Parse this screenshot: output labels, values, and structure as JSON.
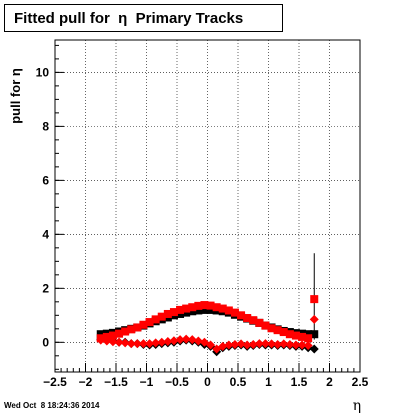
{
  "chart_data": {
    "type": "scatter",
    "title": "Fitted pull for  η  Primary Tracks",
    "xlabel": "η",
    "ylabel": "pull for η",
    "xlim": [
      -2.5,
      2.5
    ],
    "ylim": [
      -1.1,
      11.2
    ],
    "xticks": [
      "−2.5",
      "−2",
      "−1.5",
      "−1",
      "−0.5",
      "0",
      "0.5",
      "1",
      "1.5",
      "2",
      "2.5"
    ],
    "yticks": [
      "0",
      "2",
      "4",
      "6",
      "8",
      "10"
    ],
    "grid": true,
    "series": [
      {
        "marker": "square",
        "color": "#000000",
        "x": [
          -1.75,
          -1.65,
          -1.55,
          -1.45,
          -1.35,
          -1.25,
          -1.15,
          -1.05,
          -0.95,
          -0.85,
          -0.75,
          -0.65,
          -0.55,
          -0.45,
          -0.35,
          -0.25,
          -0.15,
          -0.05,
          0.05,
          0.15,
          0.25,
          0.35,
          0.45,
          0.55,
          0.65,
          0.75,
          0.85,
          0.95,
          1.05,
          1.15,
          1.25,
          1.35,
          1.45,
          1.55,
          1.65,
          1.75
        ],
        "y": [
          0.3,
          0.32,
          0.35,
          0.4,
          0.45,
          0.5,
          0.55,
          0.62,
          0.7,
          0.78,
          0.85,
          0.92,
          1.0,
          1.05,
          1.1,
          1.15,
          1.18,
          1.2,
          1.2,
          1.18,
          1.15,
          1.1,
          1.02,
          0.95,
          0.88,
          0.8,
          0.72,
          0.62,
          0.55,
          0.48,
          0.42,
          0.38,
          0.34,
          0.32,
          0.3,
          0.3
        ]
      },
      {
        "marker": "diamond",
        "color": "#000000",
        "x": [
          -1.75,
          -1.65,
          -1.55,
          -1.45,
          -1.35,
          -1.25,
          -1.15,
          -1.05,
          -0.95,
          -0.85,
          -0.75,
          -0.65,
          -0.55,
          -0.45,
          -0.35,
          -0.25,
          -0.15,
          -0.05,
          0.05,
          0.15,
          0.25,
          0.35,
          0.45,
          0.55,
          0.65,
          0.75,
          0.85,
          0.95,
          1.05,
          1.15,
          1.25,
          1.35,
          1.45,
          1.55,
          1.65,
          1.75
        ],
        "y": [
          0.12,
          0.08,
          0.05,
          0.0,
          0.0,
          -0.05,
          -0.05,
          -0.08,
          -0.1,
          -0.08,
          -0.05,
          -0.02,
          0.0,
          0.05,
          0.08,
          0.05,
          0.0,
          -0.08,
          -0.15,
          -0.35,
          -0.2,
          -0.15,
          -0.12,
          -0.1,
          -0.15,
          -0.12,
          -0.08,
          -0.1,
          -0.1,
          -0.12,
          -0.1,
          -0.12,
          -0.15,
          -0.15,
          -0.2,
          -0.25
        ]
      },
      {
        "marker": "square",
        "color": "#ff0000",
        "x": [
          -1.75,
          -1.65,
          -1.55,
          -1.45,
          -1.35,
          -1.25,
          -1.15,
          -1.05,
          -0.95,
          -0.85,
          -0.75,
          -0.65,
          -0.55,
          -0.45,
          -0.35,
          -0.25,
          -0.15,
          -0.05,
          0.05,
          0.15,
          0.25,
          0.35,
          0.45,
          0.55,
          0.65,
          0.75,
          0.85,
          0.95,
          1.05,
          1.15,
          1.25,
          1.35,
          1.45,
          1.55,
          1.65,
          1.75
        ],
        "y": [
          0.15,
          0.2,
          0.25,
          0.32,
          0.4,
          0.48,
          0.55,
          0.65,
          0.75,
          0.85,
          0.95,
          1.05,
          1.12,
          1.2,
          1.25,
          1.3,
          1.35,
          1.38,
          1.36,
          1.3,
          1.25,
          1.18,
          1.1,
          1.0,
          0.9,
          0.82,
          0.72,
          0.62,
          0.52,
          0.45,
          0.38,
          0.3,
          0.25,
          0.2,
          0.15,
          1.6
        ]
      },
      {
        "marker": "diamond",
        "color": "#ff0000",
        "x": [
          -1.75,
          -1.65,
          -1.55,
          -1.45,
          -1.35,
          -1.25,
          -1.15,
          -1.05,
          -0.95,
          -0.85,
          -0.75,
          -0.65,
          -0.55,
          -0.45,
          -0.35,
          -0.25,
          -0.15,
          -0.05,
          0.05,
          0.15,
          0.25,
          0.35,
          0.45,
          0.55,
          0.65,
          0.75,
          0.85,
          0.95,
          1.05,
          1.15,
          1.25,
          1.35,
          1.45,
          1.55,
          1.65,
          1.75
        ],
        "y": [
          0.08,
          0.05,
          0.02,
          0.0,
          -0.02,
          -0.05,
          -0.05,
          -0.05,
          -0.05,
          -0.02,
          0.0,
          0.03,
          0.06,
          0.1,
          0.12,
          0.1,
          0.05,
          0.0,
          -0.1,
          -0.25,
          -0.15,
          -0.1,
          -0.08,
          -0.06,
          -0.1,
          -0.08,
          -0.05,
          -0.05,
          -0.06,
          -0.08,
          -0.06,
          -0.08,
          -0.1,
          -0.1,
          -0.12,
          0.85
        ]
      }
    ],
    "error_bar": {
      "x": 1.75,
      "ylow": 0.1,
      "yhigh": 3.3
    }
  },
  "footer": {
    "timestamp": "Wed Oct  8 18:24:36 2014"
  }
}
